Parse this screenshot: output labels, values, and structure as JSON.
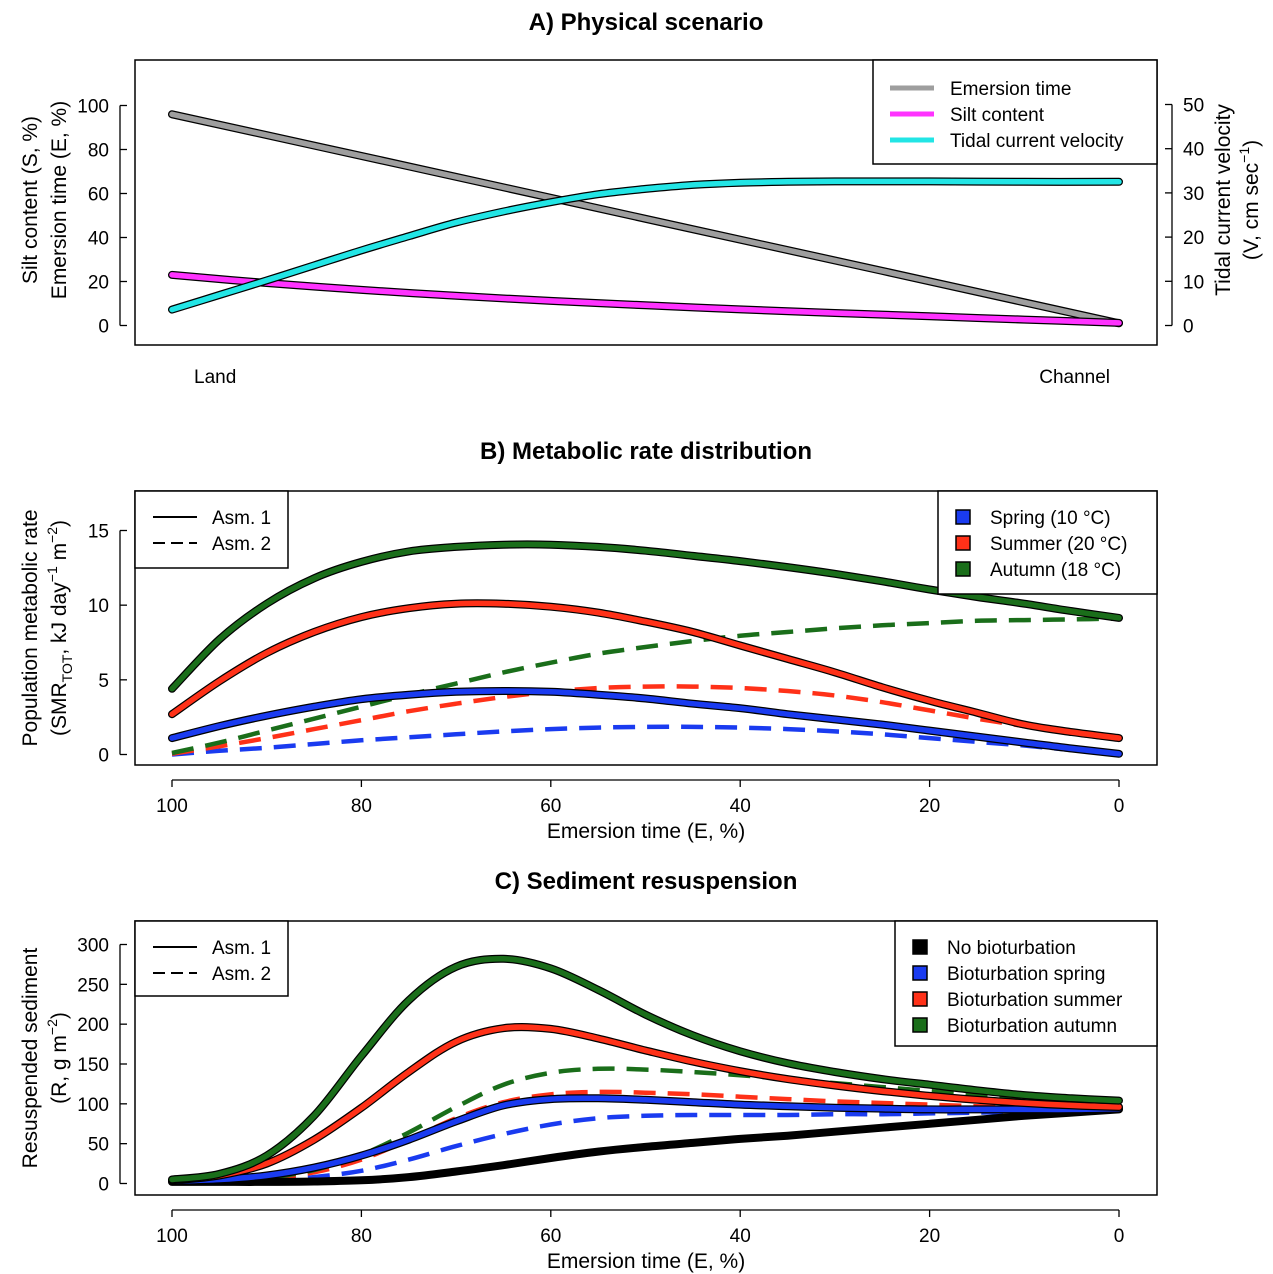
{
  "chart_data": [
    {
      "type": "line",
      "title": "A) Physical scenario",
      "ylabel": [
        "Silt content (S, %)",
        "Emersion time (E, %)"
      ],
      "ylabel2": "Tidal current velocity",
      "ylabel2_units": "(V, cm sec",
      "ylabel2_exp": "−1",
      "ylabel2_close": ")",
      "xlabel": "",
      "x_end_labels": {
        "left": "Land",
        "right": "Channel"
      },
      "ylim": [
        0,
        110
      ],
      "yticks": [
        0,
        20,
        40,
        60,
        80,
        100
      ],
      "ylim2": [
        0,
        55
      ],
      "yticks2": [
        0,
        10,
        20,
        30,
        40,
        50
      ],
      "legend": {
        "position": "top-right",
        "entries": [
          "Emersion time",
          "Silt content",
          "Tidal current velocity"
        ]
      },
      "series": [
        {
          "name": "Emersion time",
          "axis": "left",
          "color": "#9E9E9E",
          "x": [
            0,
            0.25,
            0.5,
            0.75,
            1
          ],
          "values": [
            96,
            72.3,
            48.5,
            24.8,
            1
          ]
        },
        {
          "name": "Silt content",
          "axis": "left",
          "color": "#FF33FF",
          "x": [
            0,
            0.1,
            0.2,
            0.3,
            0.4,
            0.5,
            0.6,
            0.7,
            0.8,
            0.9,
            1
          ],
          "values": [
            23,
            19.3,
            16.2,
            13.5,
            11.2,
            9.2,
            7.3,
            5.7,
            4.2,
            2.7,
            1.2
          ]
        },
        {
          "name": "Tidal current velocity",
          "axis": "right",
          "color": "#22E5E5",
          "x": [
            0,
            0.05,
            0.1,
            0.15,
            0.2,
            0.25,
            0.3,
            0.35,
            0.4,
            0.45,
            0.5,
            0.55,
            0.6,
            0.65,
            0.7,
            0.8,
            0.9,
            1
          ],
          "values": [
            3.6,
            6.9,
            10.2,
            13.6,
            17.0,
            20.2,
            23.3,
            25.8,
            27.9,
            29.7,
            30.9,
            31.8,
            32.3,
            32.5,
            32.6,
            32.6,
            32.5,
            32.5
          ]
        }
      ]
    },
    {
      "type": "line",
      "title": "B) Metabolic rate distribution",
      "xlabel": "Emersion time (E, %)",
      "ylabel": "Population metabolic rate",
      "ylabel_units": "(SMR",
      "ylabel_sub": "TOT",
      "ylabel_units2": ", kJ day",
      "ylabel_exp1": "−1",
      "ylabel_units3": " m",
      "ylabel_exp2": "−2",
      "ylabel_close": ")",
      "xlim": [
        100,
        0
      ],
      "xticks": [
        100,
        80,
        60,
        40,
        20,
        0
      ],
      "ylim": [
        0,
        17
      ],
      "yticks": [
        0,
        5,
        10,
        15
      ],
      "legend_style": {
        "position": "top-left",
        "entries": [
          "Asm. 1",
          "Asm. 2"
        ]
      },
      "legend": {
        "position": "top-right",
        "entries": [
          "Spring (10 °C)",
          "Summer (20 °C)",
          "Autumn (18 °C)"
        ]
      },
      "series": [
        {
          "name": "Spring (10 °C)",
          "style": "Asm. 1",
          "color": "#1A3BF0",
          "x": [
            100,
            95,
            90,
            85,
            80,
            75,
            70,
            65,
            60,
            55,
            50,
            45,
            40,
            35,
            30,
            25,
            20,
            15,
            10,
            5,
            0
          ],
          "values": [
            1.1,
            1.9,
            2.6,
            3.2,
            3.7,
            4.0,
            4.2,
            4.25,
            4.2,
            4.0,
            3.75,
            3.4,
            3.1,
            2.7,
            2.35,
            2.0,
            1.6,
            1.2,
            0.8,
            0.4,
            0.05
          ]
        },
        {
          "name": "Summer (20 °C)",
          "style": "Asm. 1",
          "color": "#FF3118",
          "x": [
            100,
            95,
            90,
            85,
            80,
            75,
            70,
            65,
            60,
            55,
            50,
            45,
            40,
            35,
            30,
            25,
            20,
            15,
            10,
            5,
            0
          ],
          "values": [
            2.7,
            4.9,
            6.8,
            8.2,
            9.2,
            9.8,
            10.1,
            10.1,
            9.9,
            9.5,
            8.9,
            8.2,
            7.3,
            6.4,
            5.5,
            4.5,
            3.6,
            2.8,
            2.0,
            1.5,
            1.1
          ]
        },
        {
          "name": "Autumn (18 °C)",
          "style": "Asm. 1",
          "color": "#1A6E1A",
          "x": [
            100,
            95,
            90,
            85,
            80,
            75,
            70,
            65,
            60,
            55,
            50,
            45,
            40,
            35,
            30,
            25,
            20,
            15,
            10,
            5,
            0
          ],
          "values": [
            4.4,
            7.7,
            10.1,
            11.8,
            12.9,
            13.6,
            13.9,
            14.05,
            14.05,
            13.9,
            13.65,
            13.3,
            12.95,
            12.55,
            12.1,
            11.6,
            11.05,
            10.55,
            10.1,
            9.6,
            9.15
          ]
        },
        {
          "name": "Spring (10 °C)",
          "style": "Asm. 2",
          "color": "#1A3BF0",
          "x": [
            100,
            95,
            90,
            85,
            80,
            75,
            70,
            65,
            60,
            55,
            50,
            45,
            40,
            35,
            30,
            25,
            20,
            15,
            10,
            5,
            0
          ],
          "values": [
            0.0,
            0.25,
            0.45,
            0.7,
            0.95,
            1.15,
            1.35,
            1.55,
            1.7,
            1.8,
            1.85,
            1.85,
            1.8,
            1.7,
            1.55,
            1.35,
            1.1,
            0.85,
            0.6,
            0.3,
            0.05
          ]
        },
        {
          "name": "Summer (20 °C)",
          "style": "Asm. 2",
          "color": "#FF3118",
          "x": [
            100,
            95,
            90,
            85,
            80,
            75,
            70,
            65,
            60,
            55,
            50,
            45,
            40,
            35,
            30,
            25,
            20,
            15,
            10,
            5,
            0
          ],
          "values": [
            0.05,
            0.55,
            1.1,
            1.7,
            2.3,
            2.9,
            3.4,
            3.85,
            4.2,
            4.45,
            4.55,
            4.55,
            4.45,
            4.25,
            3.95,
            3.5,
            2.95,
            2.4,
            1.9,
            1.4,
            1.0
          ]
        },
        {
          "name": "Autumn (18 °C)",
          "style": "Asm. 2",
          "color": "#1A6E1A",
          "x": [
            100,
            95,
            90,
            85,
            80,
            75,
            70,
            65,
            60,
            55,
            50,
            45,
            40,
            35,
            30,
            25,
            20,
            15,
            10,
            5,
            0
          ],
          "values": [
            0.1,
            0.8,
            1.6,
            2.4,
            3.2,
            4.0,
            4.75,
            5.5,
            6.15,
            6.75,
            7.2,
            7.6,
            7.95,
            8.2,
            8.45,
            8.65,
            8.8,
            8.95,
            9.0,
            9.05,
            9.1
          ]
        }
      ]
    },
    {
      "type": "line",
      "title": "C) Sediment resuspension",
      "xlabel": "Emersion time (E, %)",
      "ylabel": "Resuspended sediment",
      "ylabel_units": "(R, g m",
      "ylabel_exp": "−2",
      "ylabel_close": ")",
      "xlim": [
        100,
        0
      ],
      "xticks": [
        100,
        80,
        60,
        40,
        20,
        0
      ],
      "ylim": [
        0,
        320
      ],
      "yticks": [
        0,
        50,
        100,
        150,
        200,
        250,
        300
      ],
      "legend_style": {
        "position": "top-left",
        "entries": [
          "Asm. 1",
          "Asm. 2"
        ]
      },
      "legend": {
        "position": "top-right",
        "entries": [
          "No bioturbation",
          "Bioturbation spring",
          "Bioturbation summer",
          "Bioturbation  autumn"
        ]
      },
      "series": [
        {
          "name": "No bioturbation",
          "style": "Asm. 1",
          "color": "#000000",
          "x": [
            100,
            95,
            90,
            85,
            80,
            75,
            70,
            65,
            60,
            55,
            50,
            45,
            40,
            35,
            30,
            25,
            20,
            15,
            10,
            5,
            0
          ],
          "values": [
            2,
            2,
            2,
            2.5,
            4,
            8,
            15,
            23,
            32,
            40,
            46,
            51,
            56,
            60,
            65,
            70,
            75,
            80,
            85,
            89,
            93
          ]
        },
        {
          "name": "Bioturbation spring",
          "style": "Asm. 1",
          "color": "#1A3BF0",
          "x": [
            100,
            95,
            90,
            85,
            80,
            75,
            70,
            65,
            60,
            55,
            50,
            45,
            40,
            35,
            30,
            25,
            20,
            15,
            10,
            5,
            0
          ],
          "values": [
            3,
            5,
            10,
            20,
            35,
            55,
            78,
            98,
            106,
            107,
            105,
            102,
            99,
            97,
            95,
            94,
            93,
            93,
            93,
            93,
            94
          ]
        },
        {
          "name": "Bioturbation summer",
          "style": "Asm. 1",
          "color": "#FF3118",
          "x": [
            100,
            95,
            90,
            85,
            80,
            75,
            70,
            65,
            60,
            55,
            50,
            45,
            40,
            35,
            30,
            25,
            20,
            15,
            10,
            5,
            0
          ],
          "values": [
            4,
            10,
            25,
            55,
            95,
            140,
            178,
            195,
            194,
            182,
            167,
            153,
            141,
            131,
            123,
            116,
            110,
            105,
            101,
            98,
            96
          ]
        },
        {
          "name": "Bioturbation  autumn",
          "style": "Asm. 1",
          "color": "#1A6E1A",
          "x": [
            100,
            95,
            90,
            85,
            80,
            75,
            70,
            65,
            60,
            55,
            50,
            45,
            40,
            35,
            30,
            25,
            20,
            15,
            10,
            5,
            0
          ],
          "values": [
            5,
            12,
            35,
            85,
            160,
            230,
            272,
            282,
            270,
            243,
            212,
            186,
            166,
            151,
            140,
            131,
            124,
            117,
            111,
            107,
            104
          ]
        },
        {
          "name": "Bioturbation spring",
          "style": "Asm. 2",
          "color": "#1A3BF0",
          "x": [
            100,
            95,
            90,
            85,
            80,
            75,
            70,
            65,
            60,
            55,
            50,
            45,
            40,
            35,
            30,
            25,
            20,
            15,
            10,
            5,
            0
          ],
          "values": [
            2,
            2.5,
            4,
            8,
            16,
            30,
            47,
            62,
            74,
            82,
            85,
            86,
            86,
            86,
            87,
            87,
            88,
            89,
            90,
            91,
            92
          ]
        },
        {
          "name": "Bioturbation summer",
          "style": "Asm. 2",
          "color": "#FF3118",
          "x": [
            100,
            95,
            90,
            85,
            80,
            75,
            70,
            65,
            60,
            55,
            50,
            45,
            40,
            35,
            30,
            25,
            20,
            15,
            10,
            5,
            0
          ],
          "values": [
            2,
            3,
            6,
            14,
            30,
            55,
            82,
            102,
            112,
            115,
            114,
            112,
            109,
            106,
            103,
            101,
            99,
            97,
            96,
            95,
            94
          ]
        },
        {
          "name": "Bioturbation  autumn",
          "style": "Asm. 2",
          "color": "#1A6E1A",
          "x": [
            100,
            95,
            90,
            85,
            80,
            75,
            70,
            65,
            60,
            55,
            50,
            45,
            40,
            35,
            30,
            25,
            20,
            15,
            10,
            5,
            0
          ],
          "values": [
            2,
            3,
            7,
            17,
            36,
            64,
            96,
            124,
            139,
            144,
            143,
            140,
            136,
            131,
            126,
            121,
            116,
            111,
            106,
            102,
            99
          ]
        }
      ]
    }
  ]
}
